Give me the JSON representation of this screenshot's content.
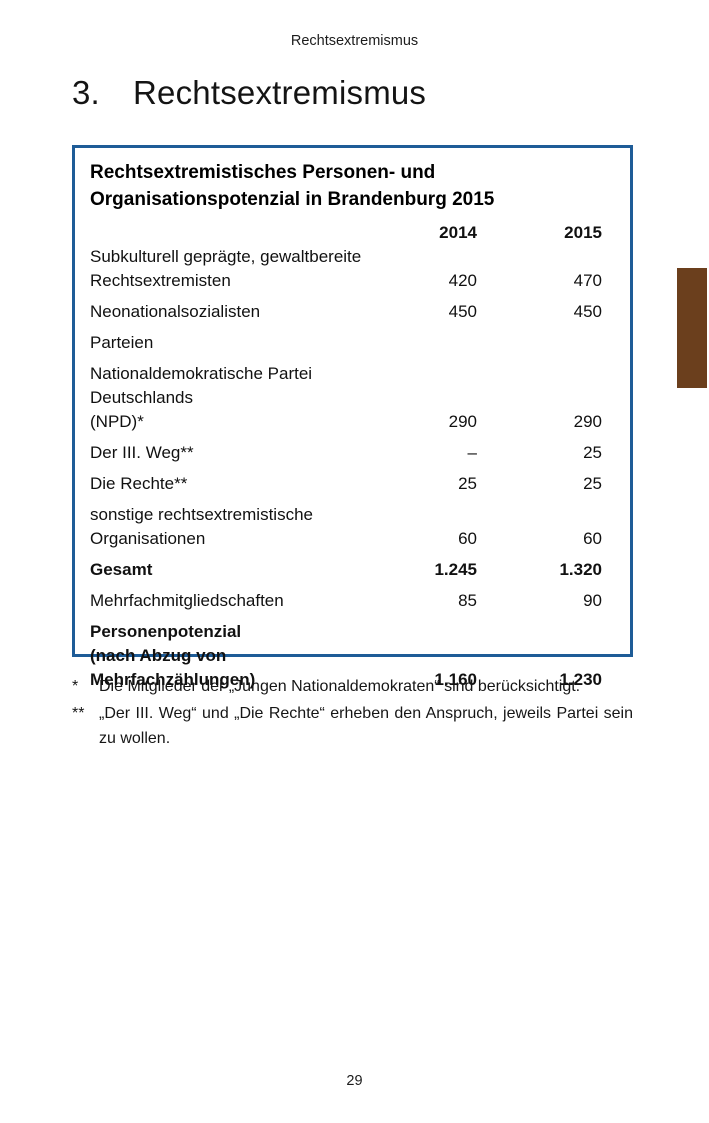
{
  "page": {
    "running_header": "Rechtsextremismus",
    "heading_number": "3.",
    "heading_title": "Rechtsextremismus",
    "page_number": "29"
  },
  "table": {
    "title_line1": "Rechtsextremistisches Personen- und",
    "title_line2": "Organisationspotenzial in Brandenburg 2015",
    "col_2014": "2014",
    "col_2015": "2015",
    "border_color": "#1e5c97",
    "rows": [
      {
        "label": "Subkulturell geprägte, gewaltbereite\nRechtsextremisten",
        "v2014": "420",
        "v2015": "470"
      },
      {
        "label": "Neonationalsozialisten",
        "v2014": "450",
        "v2015": "450"
      },
      {
        "label": "Parteien",
        "v2014": "",
        "v2015": ""
      },
      {
        "label": "Nationaldemokratische Partei Deutschlands\n(NPD)*",
        "v2014": "290",
        "v2015": "290"
      },
      {
        "label": "Der III. Weg**",
        "v2014": "–",
        "v2015": "25"
      },
      {
        "label": "Die Rechte**",
        "v2014": "25",
        "v2015": "25"
      },
      {
        "label": "sonstige rechtsextremistische\nOrganisationen",
        "v2014": "60",
        "v2015": "60"
      },
      {
        "label": "Gesamt",
        "v2014": "1.245",
        "v2015": "1.320"
      },
      {
        "label": "Mehrfachmitgliedschaften",
        "v2014": "85",
        "v2015": "90"
      },
      {
        "label": "Personenpotenzial\n(nach Abzug von Mehrfachzählungen)",
        "v2014": "1.160",
        "v2015": "1.230"
      }
    ]
  },
  "footnotes": [
    {
      "marker": "*",
      "text": "Die Mitglieder der „Jungen Nationaldemokraten“ sind berücksichtigt."
    },
    {
      "marker": "**",
      "text": "„Der III. Weg“ und „Die Rechte“ erheben den Anspruch, jeweils Partei sein zu wollen."
    }
  ],
  "decor": {
    "tab_color": "#6b3f1d"
  }
}
